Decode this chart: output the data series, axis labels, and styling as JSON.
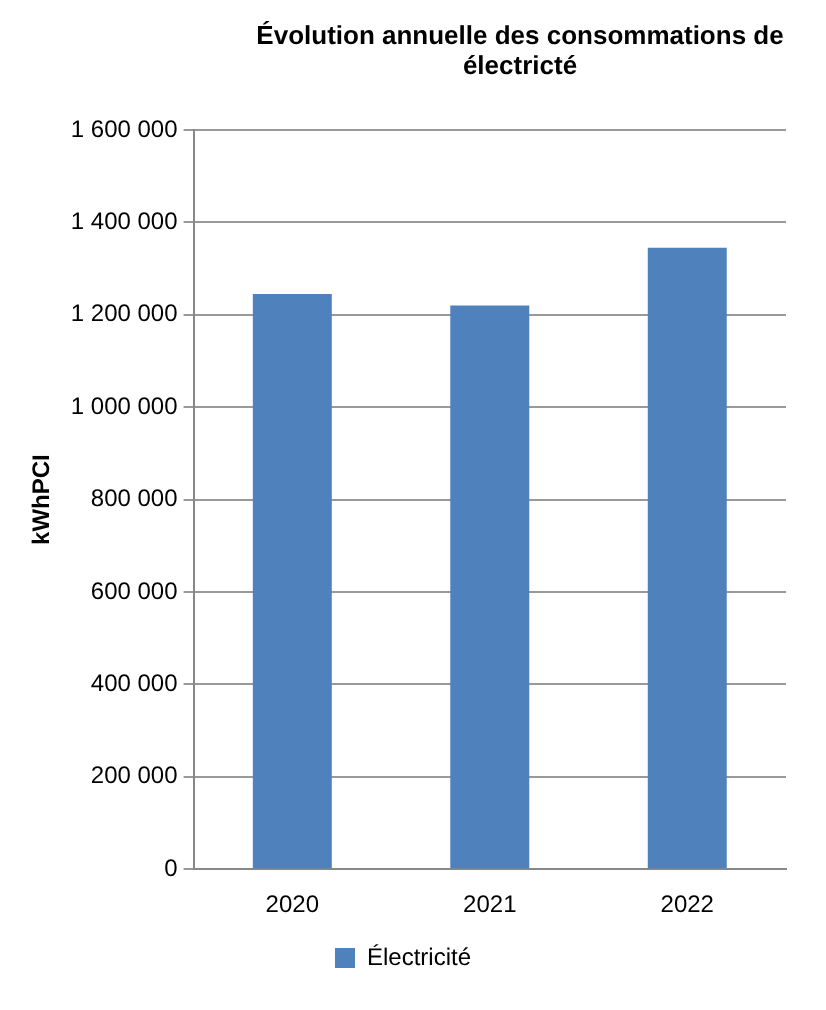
{
  "chart_data": {
    "type": "bar",
    "title": "Évolution annuelle des consommations de électricté",
    "ylabel": "kWhPCI",
    "categories": [
      "2020",
      "2021",
      "2022"
    ],
    "series": [
      {
        "name": "Électricité",
        "color": "#4f81bd",
        "values": [
          1245000,
          1220000,
          1345000
        ]
      }
    ],
    "ylim": [
      0,
      1600000
    ],
    "yticks": [
      {
        "value": 0,
        "label": "0"
      },
      {
        "value": 200000,
        "label": "200 000"
      },
      {
        "value": 400000,
        "label": "400 000"
      },
      {
        "value": 600000,
        "label": "600 000"
      },
      {
        "value": 800000,
        "label": "800 000"
      },
      {
        "value": 1000000,
        "label": "1 000 000"
      },
      {
        "value": 1200000,
        "label": "1 200 000"
      },
      {
        "value": 1400000,
        "label": "1 400 000"
      },
      {
        "value": 1600000,
        "label": "1 600 000"
      }
    ],
    "grid": "y",
    "legend": "bottom"
  }
}
